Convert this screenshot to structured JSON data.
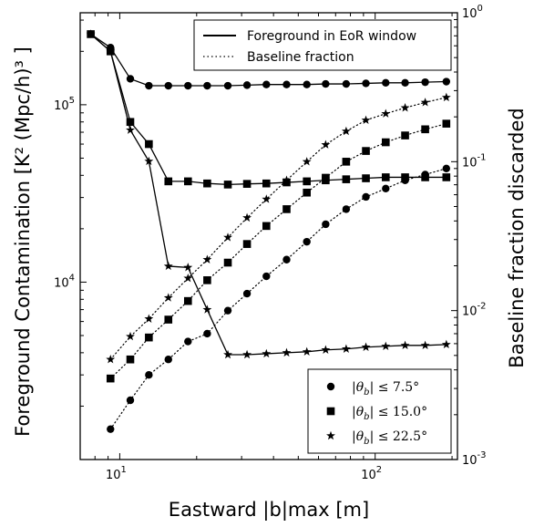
{
  "chart_data": {
    "type": "line",
    "xlabel": "Eastward |b|max [m]",
    "ylabel_left": "Foreground Contamination [K² (Mpc/h)³ ]",
    "ylabel_right": "Baseline fraction discarded",
    "x_scale": "log",
    "y_left_scale": "log",
    "y_right_scale": "log",
    "xlim": [
      7,
      210
    ],
    "ylim_left": [
      1000,
      330000
    ],
    "ylim_right": [
      0.001,
      1
    ],
    "x_ticks": [
      {
        "value": 10,
        "label": "10",
        "exp": "1"
      },
      {
        "value": 100,
        "label": "10",
        "exp": "2"
      }
    ],
    "y_left_ticks": [
      {
        "value": 10000,
        "label": "10",
        "exp": "4"
      },
      {
        "value": 100000,
        "label": "10",
        "exp": "5"
      }
    ],
    "y_right_ticks": [
      {
        "value": 0.001,
        "label": "10",
        "exp": "-3"
      },
      {
        "value": 0.01,
        "label": "10",
        "exp": "-2"
      },
      {
        "value": 0.1,
        "label": "10",
        "exp": "-1"
      },
      {
        "value": 1,
        "label": "10",
        "exp": "0"
      }
    ],
    "grid": false,
    "legends": {
      "style": {
        "position": "top-right",
        "entries": [
          {
            "label": "Foreground in EoR window",
            "line": "solid"
          },
          {
            "label": "Baseline fraction",
            "line": "dotted"
          }
        ]
      },
      "markers": {
        "position": "bottom-right",
        "entries": [
          {
            "marker": "circle",
            "prefix": "θb",
            "label": "≤ 7.5°"
          },
          {
            "marker": "square",
            "prefix": "θb",
            "label": "≤ 15.0°"
          },
          {
            "marker": "star",
            "prefix": "θb",
            "label": "≤ 22.5°"
          }
        ]
      }
    },
    "series": [
      {
        "marker": "circle",
        "quantity": "foreground",
        "axis": "left",
        "line": "solid",
        "x": [
          7.7,
          9.2,
          11,
          13,
          15.5,
          18.5,
          22,
          26.5,
          31.5,
          37.5,
          45,
          54,
          64,
          77,
          92,
          110,
          131,
          157,
          190
        ],
        "y": [
          250000,
          210000,
          140000,
          128000,
          128000,
          128000,
          128000,
          128000,
          129000,
          130000,
          130000,
          130000,
          131000,
          131000,
          132000,
          133000,
          133000,
          134000,
          135000
        ]
      },
      {
        "marker": "square",
        "quantity": "foreground",
        "axis": "left",
        "line": "solid",
        "x": [
          7.7,
          9.2,
          11,
          13,
          15.5,
          18.5,
          22,
          26.5,
          31.5,
          37.5,
          45,
          54,
          64,
          77,
          92,
          110,
          131,
          157,
          190
        ],
        "y": [
          250000,
          200000,
          80000,
          60000,
          37000,
          37000,
          36000,
          35500,
          35800,
          36000,
          36500,
          37000,
          37500,
          38000,
          38500,
          39000,
          39000,
          39000,
          39000
        ]
      },
      {
        "marker": "star",
        "quantity": "foreground",
        "axis": "left",
        "line": "solid",
        "x": [
          7.7,
          9.2,
          11,
          13,
          15.5,
          18.5,
          22,
          26.5,
          31.5,
          37.5,
          45,
          54,
          64,
          77,
          92,
          110,
          131,
          157,
          190
        ],
        "y": [
          250000,
          200000,
          72000,
          48000,
          12300,
          12100,
          7000,
          3900,
          3900,
          3950,
          4000,
          4050,
          4150,
          4200,
          4300,
          4350,
          4400,
          4400,
          4450
        ]
      },
      {
        "marker": "circle",
        "quantity": "baseline fraction",
        "axis": "right",
        "line": "dotted",
        "x": [
          9.2,
          11,
          13,
          15.5,
          18.5,
          22,
          26.5,
          31.5,
          37.5,
          45,
          54,
          64,
          77,
          92,
          110,
          131,
          157,
          190
        ],
        "y": [
          0.0016,
          0.0025,
          0.0037,
          0.0047,
          0.0062,
          0.007,
          0.01,
          0.013,
          0.017,
          0.022,
          0.029,
          0.038,
          0.048,
          0.058,
          0.066,
          0.075,
          0.082,
          0.09
        ]
      },
      {
        "marker": "square",
        "quantity": "baseline fraction",
        "axis": "right",
        "line": "dotted",
        "x": [
          9.2,
          11,
          13,
          15.5,
          18.5,
          22,
          26.5,
          31.5,
          37.5,
          45,
          54,
          64,
          77,
          92,
          110,
          131,
          157,
          190
        ],
        "y": [
          0.0035,
          0.0047,
          0.0066,
          0.0087,
          0.0116,
          0.016,
          0.021,
          0.028,
          0.037,
          0.048,
          0.062,
          0.078,
          0.1,
          0.118,
          0.135,
          0.15,
          0.165,
          0.18
        ]
      },
      {
        "marker": "star",
        "quantity": "baseline fraction",
        "axis": "right",
        "line": "dotted",
        "x": [
          9.2,
          11,
          13,
          15.5,
          18.5,
          22,
          26.5,
          31.5,
          37.5,
          45,
          54,
          64,
          77,
          92,
          110,
          131,
          157,
          190
        ],
        "y": [
          0.0047,
          0.0067,
          0.0088,
          0.0122,
          0.0165,
          0.022,
          0.031,
          0.042,
          0.056,
          0.075,
          0.1,
          0.13,
          0.16,
          0.19,
          0.21,
          0.23,
          0.25,
          0.27
        ]
      }
    ]
  }
}
